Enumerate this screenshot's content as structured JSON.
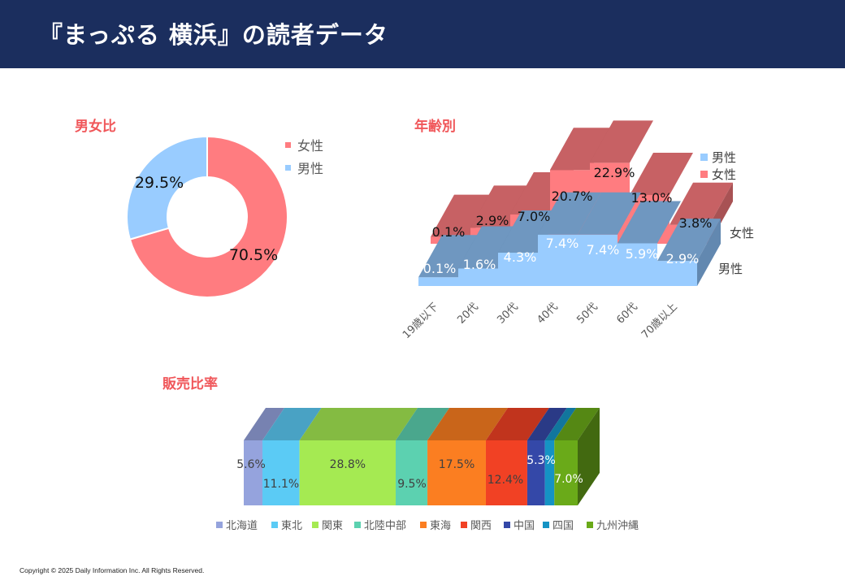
{
  "header": {
    "title": "『まっぷる 横浜』の読者データ"
  },
  "footer": {
    "copyright": "Copyright © 2025 Daily Information Inc. All Rights Reserved."
  },
  "colors": {
    "header_bg": "#1b2e5e",
    "section_title": "#f0575a",
    "female": "#ff7c80",
    "male": "#99ccff"
  },
  "chart_data": [
    {
      "type": "pie",
      "variant": "donut",
      "title": "男女比",
      "legend_position": "top-right",
      "categories": [
        "女性",
        "男性"
      ],
      "values": [
        70.5,
        29.5
      ],
      "labels": [
        "70.5%",
        "29.5%"
      ],
      "colors": [
        "#ff7c80",
        "#99ccff"
      ]
    },
    {
      "type": "area",
      "variant": "3d-stepped",
      "title": "年齢別",
      "legend_position": "top-right",
      "categories": [
        "19歳以下",
        "20代",
        "30代",
        "40代",
        "50代",
        "60代",
        "70歳以上"
      ],
      "series": [
        {
          "name": "男性",
          "values": [
            0.1,
            1.6,
            4.3,
            7.4,
            7.4,
            5.9,
            2.9
          ],
          "labels": [
            "0.1%",
            "1.6%",
            "4.3%",
            "7.4%",
            "7.4%",
            "5.9%",
            "2.9%"
          ],
          "color": "#99ccff"
        },
        {
          "name": "女性",
          "values": [
            0.1,
            2.9,
            7.0,
            20.7,
            22.9,
            13.0,
            3.8
          ],
          "labels": [
            "0.1%",
            "2.9%",
            "7.0%",
            "20.7%",
            "22.9%",
            "13.0%",
            "3.8%"
          ],
          "color": "#ff7c80"
        }
      ],
      "legend": [
        "男性",
        "女性"
      ],
      "depth_axis_labels": [
        "女性",
        "男性"
      ]
    },
    {
      "type": "bar",
      "variant": "100%-stacked-3d",
      "title": "販売比率",
      "legend_position": "bottom",
      "categories": [
        "北海道",
        "東北",
        "関東",
        "北陸中部",
        "東海",
        "関西",
        "中国",
        "四国",
        "九州沖縄"
      ],
      "values": [
        5.6,
        11.1,
        28.8,
        9.5,
        17.5,
        12.4,
        5.3,
        2.8,
        7.0
      ],
      "labels": [
        "5.6%",
        "11.1%",
        "28.8%",
        "9.5%",
        "17.5%",
        "12.4%",
        "5.3%",
        "",
        "7.0%"
      ],
      "colors": [
        "#95a3dd",
        "#5bcbf5",
        "#a5ea52",
        "#5cd1b0",
        "#fb7e21",
        "#f14124",
        "#3448a8",
        "#1593c4",
        "#6aaa19"
      ]
    }
  ]
}
